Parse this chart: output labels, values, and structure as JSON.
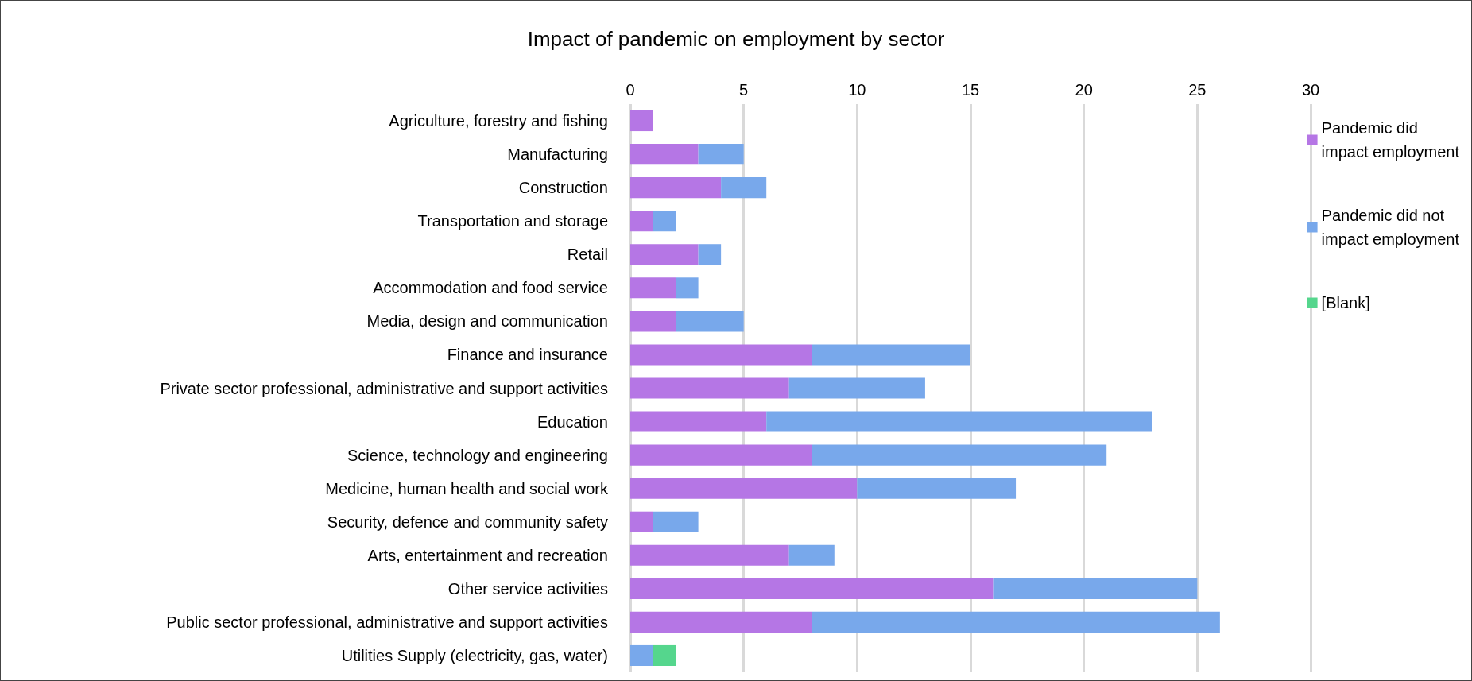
{
  "chart_data": {
    "type": "bar",
    "orientation": "horizontal",
    "stacked": true,
    "title": "Impact of pandemic on employment by sector",
    "categories": [
      "Agriculture, forestry and fishing",
      "Manufacturing",
      "Construction",
      "Transportation and storage",
      "Retail",
      "Accommodation and food service",
      "Media, design and communication",
      "Finance and insurance",
      "Private sector professional, administrative and support activities",
      "Education",
      "Science, technology and engineering",
      "Medicine, human health and social work",
      "Security, defence and community safety",
      "Arts, entertainment and recreation",
      "Other service activities",
      "Public sector professional, administrative and support activities",
      "Utilities Supply (electricity, gas, water)"
    ],
    "series": [
      {
        "name": "Pandemic did impact employment",
        "color": "#b576e5",
        "values": [
          1,
          3,
          4,
          1,
          3,
          2,
          2,
          8,
          7,
          6,
          8,
          10,
          1,
          7,
          16,
          8,
          null
        ]
      },
      {
        "name": "Pandemic did not impact employment",
        "color": "#78a8eb",
        "values": [
          null,
          2,
          2,
          1,
          1,
          1,
          3,
          7,
          6,
          17,
          13,
          7,
          2,
          2,
          9,
          18,
          1
        ]
      },
      {
        "name": "[Blank]",
        "color": "#55d68d",
        "values": [
          null,
          null,
          null,
          null,
          null,
          null,
          null,
          null,
          null,
          null,
          null,
          null,
          null,
          null,
          null,
          null,
          1
        ]
      }
    ],
    "xlim": [
      0,
      30
    ],
    "xticks": [
      0,
      5,
      10,
      15,
      20,
      25,
      30
    ],
    "grid": "x",
    "legend": "right"
  }
}
